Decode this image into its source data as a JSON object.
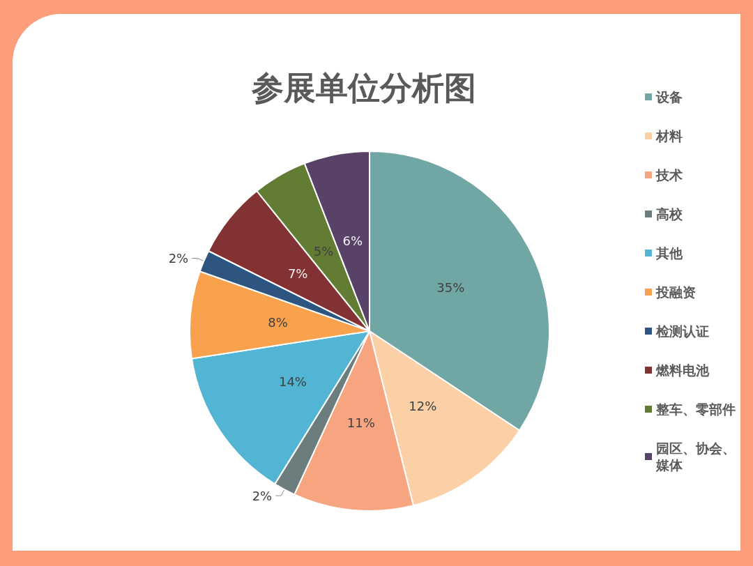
{
  "chart_data": {
    "type": "pie",
    "title": "参展单位分析图",
    "categories": [
      "设备",
      "材料",
      "技术",
      "高校",
      "其他",
      "投融资",
      "检测认证",
      "燃料电池",
      "整车、零部件",
      "园区、协会、媒体"
    ],
    "values": [
      35,
      12,
      11,
      2,
      14,
      8,
      2,
      7,
      5,
      6
    ],
    "value_labels": [
      "35%",
      "12%",
      "11%",
      "2%",
      "14%",
      "8%",
      "2%",
      "7%",
      "5%",
      "6%"
    ],
    "colors": [
      "#70a7a5",
      "#fbd0a6",
      "#f7a480",
      "#6c7d7e",
      "#52b5d3",
      "#f9a24e",
      "#2e5480",
      "#833233",
      "#637c33",
      "#584268"
    ],
    "legend": "right"
  }
}
